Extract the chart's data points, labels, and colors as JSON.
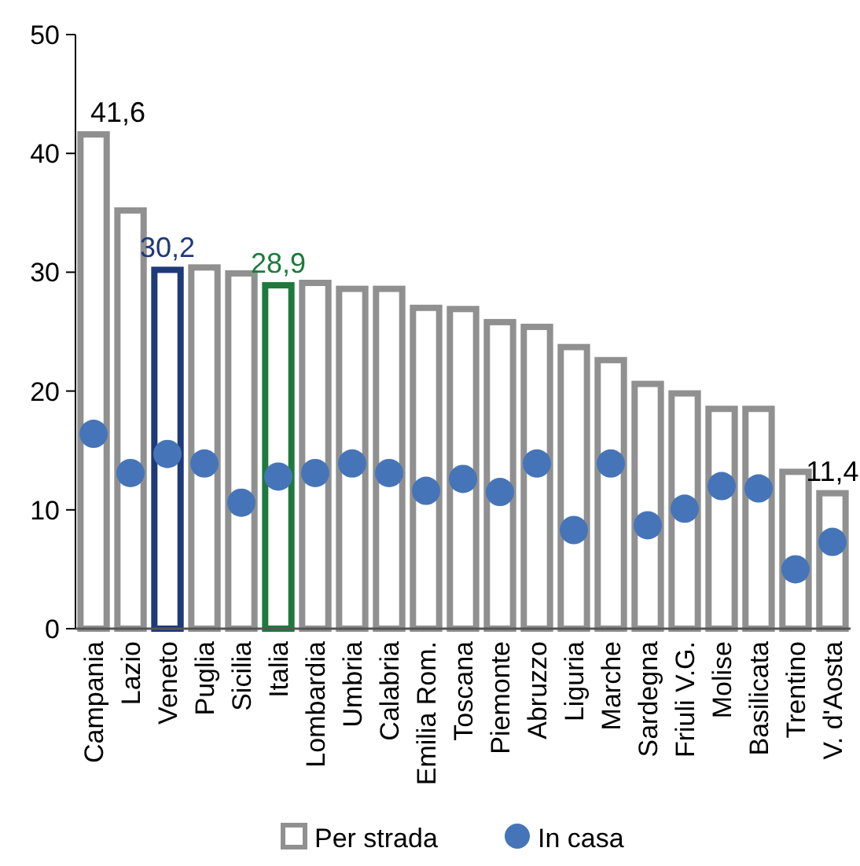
{
  "chart_data": {
    "type": "bar",
    "categories": [
      "Campania",
      "Lazio",
      "Veneto",
      "Puglia",
      "Sicilia",
      "Italia",
      "Lombardia",
      "Umbria",
      "Calabria",
      "Emilia Rom.",
      "Toscana",
      "Piemonte",
      "Abruzzo",
      "Liguria",
      "Marche",
      "Sardegna",
      "Friuli V.G.",
      "Molise",
      "Basilicata",
      "Trentino",
      "V. d'Aosta"
    ],
    "series": [
      {
        "name": "Per strada",
        "color": "#909090",
        "colors": [
          "#909090",
          "#909090",
          "#1f3a7a",
          "#909090",
          "#909090",
          "#1e7a3c",
          "#909090",
          "#909090",
          "#909090",
          "#909090",
          "#909090",
          "#909090",
          "#909090",
          "#909090",
          "#909090",
          "#909090",
          "#909090",
          "#909090",
          "#909090",
          "#909090",
          "#909090"
        ],
        "values": [
          41.6,
          35.2,
          30.2,
          30.4,
          29.9,
          28.9,
          29.1,
          28.6,
          28.6,
          27.0,
          26.9,
          25.8,
          25.4,
          23.7,
          22.6,
          20.6,
          19.8,
          18.5,
          18.5,
          13.2,
          11.4
        ],
        "value_labels": [
          "41,6",
          null,
          "30,2",
          null,
          null,
          "28,9",
          null,
          null,
          null,
          null,
          null,
          null,
          null,
          null,
          null,
          null,
          null,
          null,
          null,
          null,
          "11,4"
        ]
      },
      {
        "name": "In casa",
        "type": "scatter",
        "color": "#4575b8",
        "values": [
          16.4,
          13.1,
          14.7,
          13.9,
          10.6,
          12.8,
          13.1,
          13.9,
          13.1,
          11.6,
          12.6,
          11.5,
          13.9,
          8.3,
          13.9,
          8.7,
          10.1,
          12.0,
          11.8,
          5.0,
          7.3
        ]
      }
    ],
    "ylim": [
      0,
      50
    ],
    "yticks": [
      0,
      10,
      20,
      30,
      40,
      50
    ],
    "grid": false,
    "legend": "bottom",
    "marker": "circle"
  }
}
